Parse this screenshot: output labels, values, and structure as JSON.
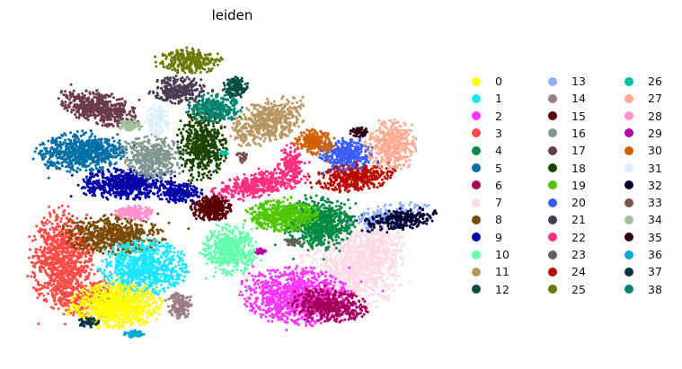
{
  "chart_data": {
    "type": "scatter",
    "title": "leiden",
    "xlabel": "",
    "ylabel": "",
    "grid": false,
    "legend_placement": "right",
    "series": [
      {
        "name": "0",
        "color": "#ffff00"
      },
      {
        "name": "1",
        "color": "#1ce6ff"
      },
      {
        "name": "2",
        "color": "#ff34ff"
      },
      {
        "name": "3",
        "color": "#ff4a46"
      },
      {
        "name": "4",
        "color": "#008941"
      },
      {
        "name": "5",
        "color": "#006fa6"
      },
      {
        "name": "6",
        "color": "#a30059"
      },
      {
        "name": "7",
        "color": "#ffdbe5"
      },
      {
        "name": "8",
        "color": "#7a4900"
      },
      {
        "name": "9",
        "color": "#0000a6"
      },
      {
        "name": "10",
        "color": "#63ffac"
      },
      {
        "name": "11",
        "color": "#b79762"
      },
      {
        "name": "12",
        "color": "#004d43"
      },
      {
        "name": "13",
        "color": "#8fb0ff"
      },
      {
        "name": "14",
        "color": "#997d87"
      },
      {
        "name": "15",
        "color": "#5a0007"
      },
      {
        "name": "16",
        "color": "#809693"
      },
      {
        "name": "17",
        "color": "#6a3a4c"
      },
      {
        "name": "18",
        "color": "#1b4400"
      },
      {
        "name": "19",
        "color": "#4fc601"
      },
      {
        "name": "20",
        "color": "#3b5dff"
      },
      {
        "name": "21",
        "color": "#4a3b53"
      },
      {
        "name": "22",
        "color": "#ff2f80"
      },
      {
        "name": "23",
        "color": "#61615a"
      },
      {
        "name": "24",
        "color": "#ba0900"
      },
      {
        "name": "25",
        "color": "#6b7900"
      },
      {
        "name": "26",
        "color": "#00c2a0"
      },
      {
        "name": "27",
        "color": "#ffaa92"
      },
      {
        "name": "28",
        "color": "#ff90c9"
      },
      {
        "name": "29",
        "color": "#b903aa"
      },
      {
        "name": "30",
        "color": "#d16100"
      },
      {
        "name": "31",
        "color": "#ddefff"
      },
      {
        "name": "32",
        "color": "#000035"
      },
      {
        "name": "33",
        "color": "#7b4f4b"
      },
      {
        "name": "34",
        "color": "#a1c299"
      },
      {
        "name": "35",
        "color": "#300018"
      },
      {
        "name": "36",
        "color": "#0aa6d8"
      },
      {
        "name": "37",
        "color": "#013349"
      },
      {
        "name": "38",
        "color": "#00846f"
      }
    ]
  }
}
